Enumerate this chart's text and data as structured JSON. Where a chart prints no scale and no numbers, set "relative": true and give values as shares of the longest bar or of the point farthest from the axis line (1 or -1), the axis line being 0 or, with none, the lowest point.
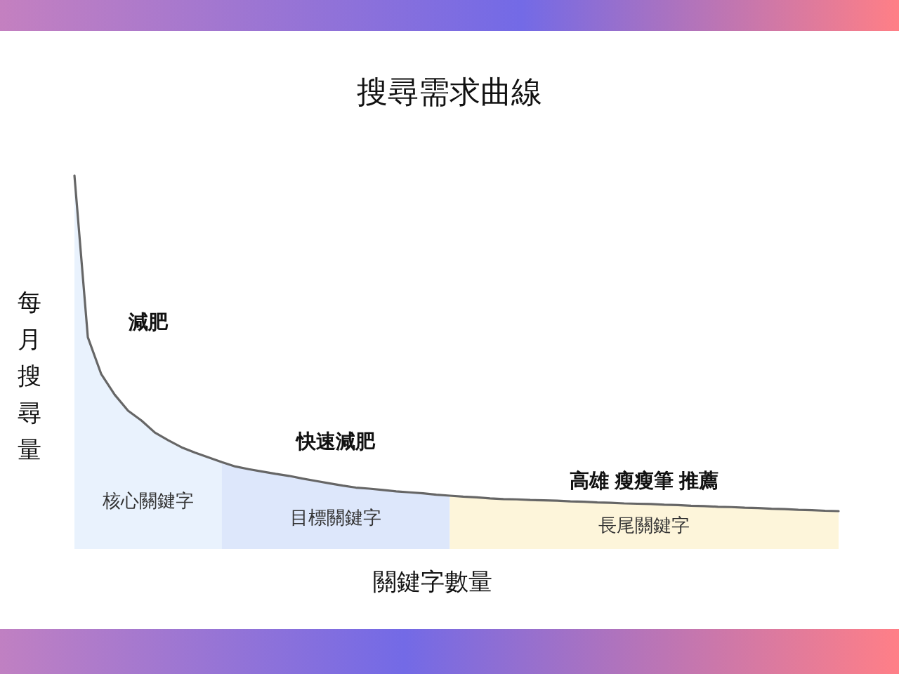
{
  "chart_data": {
    "type": "area",
    "title": "搜尋需求曲線",
    "xlabel": "關鍵字數量",
    "ylabel": "每月搜尋量",
    "relative": true,
    "categories": [
      null,
      null,
      null,
      null,
      null,
      null,
      null,
      null,
      null,
      null,
      null,
      null,
      null,
      null,
      null,
      null,
      null,
      null,
      null,
      null,
      null,
      null,
      null,
      null,
      null,
      null,
      null,
      null,
      null,
      null,
      null,
      null,
      null,
      null,
      null,
      null,
      null,
      null,
      null,
      null,
      null,
      null,
      null,
      null,
      null,
      null,
      null,
      null,
      null,
      null,
      null,
      null,
      null,
      null,
      null,
      null,
      null,
      null
    ],
    "series": [
      {
        "name": "核心關鍵字",
        "color": "#e9f2fd",
        "values": [
          1.0,
          0.518,
          0.408,
          0.347,
          0.299,
          0.27,
          0.234,
          0.211,
          0.19,
          0.174,
          0.16,
          0.146,
          null,
          null,
          null,
          null,
          null,
          null,
          null,
          null,
          null,
          null,
          null,
          null,
          null,
          null,
          null,
          null,
          null,
          null,
          null,
          null,
          null,
          null,
          null,
          null,
          null,
          null,
          null,
          null,
          null,
          null,
          null,
          null,
          null,
          null,
          null,
          null,
          null,
          null,
          null,
          null,
          null,
          null,
          null,
          null,
          null,
          null
        ]
      },
      {
        "name": "目標關鍵字",
        "color": "#dde7fb",
        "values": [
          null,
          null,
          null,
          null,
          null,
          null,
          null,
          null,
          null,
          null,
          null,
          0.146,
          0.133,
          0.125,
          0.118,
          0.111,
          0.105,
          0.097,
          0.09,
          0.083,
          0.076,
          0.07,
          0.067,
          0.063,
          0.059,
          0.056,
          0.053,
          0.049,
          0.046,
          null,
          null,
          null,
          null,
          null,
          null,
          null,
          null,
          null,
          null,
          null,
          null,
          null,
          null,
          null,
          null,
          null,
          null,
          null,
          null,
          null,
          null,
          null,
          null,
          null,
          null,
          null,
          null,
          null
        ]
      },
      {
        "name": "長尾關鍵字",
        "color": "#fdf5da",
        "values": [
          null,
          null,
          null,
          null,
          null,
          null,
          null,
          null,
          null,
          null,
          null,
          null,
          null,
          null,
          null,
          null,
          null,
          null,
          null,
          null,
          null,
          null,
          null,
          null,
          null,
          null,
          null,
          null,
          0.046,
          0.043,
          0.041,
          0.038,
          0.036,
          0.035,
          0.033,
          0.032,
          0.031,
          0.029,
          0.028,
          0.026,
          0.025,
          0.023,
          0.022,
          0.021,
          0.019,
          0.018,
          0.016,
          0.015,
          0.013,
          0.012,
          0.01,
          0.009,
          0.007,
          0.006,
          0.004,
          0.003,
          0.001,
          0.0
        ]
      },
      {
        "type": "line",
        "color": "#666666",
        "values": [
          1.0,
          0.518,
          0.408,
          0.347,
          0.299,
          0.27,
          0.234,
          0.211,
          0.19,
          0.174,
          0.16,
          0.146,
          0.133,
          0.125,
          0.118,
          0.111,
          0.105,
          0.097,
          0.09,
          0.083,
          0.076,
          0.07,
          0.067,
          0.063,
          0.059,
          0.056,
          0.053,
          0.049,
          0.046,
          0.043,
          0.041,
          0.038,
          0.036,
          0.035,
          0.033,
          0.032,
          0.031,
          0.029,
          0.028,
          0.026,
          0.025,
          0.023,
          0.022,
          0.021,
          0.019,
          0.018,
          0.016,
          0.015,
          0.013,
          0.012,
          0.01,
          0.009,
          0.007,
          0.006,
          0.004,
          0.003,
          0.001,
          0.0
        ]
      }
    ],
    "annotations": [
      "減肥",
      "快速減肥",
      "高雄 瘦瘦筆 推薦"
    ]
  }
}
